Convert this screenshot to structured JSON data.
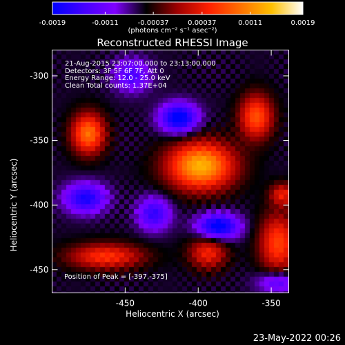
{
  "window": {
    "title": "Reconstructed RHESSI Image",
    "timestamp": "23-May-2022 00:26"
  },
  "colorbar": {
    "tick_labels": [
      "-0.0019",
      "-0.0011",
      "-0.00037",
      "0.00037",
      "0.0011",
      "0.0019"
    ],
    "units": "(photons cm⁻² s⁻¹ asec⁻²)",
    "range": [
      -0.0019,
      0.0019
    ],
    "colormap": [
      "#0000ff",
      "#4400ff",
      "#8000ff",
      "#000000",
      "#a00000",
      "#ff2000",
      "#ff7000",
      "#ffc000",
      "#ffffff"
    ]
  },
  "annotations": {
    "time_range": "21-Aug-2015 23:07:00.000 to 23:13:00.000",
    "detectors": "Detectors: 3F 5F 6F 7F, Att 0",
    "energy_range": "Energy Range: 12.0 - 25.0 keV",
    "algorithm": "Clean     Total counts: 1.37E+04",
    "peak": "Position of Peak = [-397,-375]"
  },
  "chart_data": {
    "type": "heatmap",
    "title": "Reconstructed RHESSI Image",
    "xlabel": "Heliocentric X (arcsec)",
    "ylabel": "Heliocentric Y (arcsec)",
    "xlim": [
      -500,
      -338
    ],
    "ylim": [
      -468,
      -280
    ],
    "x_ticks": [
      -450,
      -400,
      -350
    ],
    "y_ticks": [
      -300,
      -350,
      -400,
      -450
    ],
    "peak_position": [
      -397,
      -375
    ],
    "sources": [
      {
        "x": -398,
        "y": -370,
        "sx": 16,
        "sy": 13,
        "amp": 0.0019
      },
      {
        "x": -475,
        "y": -345,
        "sx": 8,
        "sy": 11,
        "amp": 0.0015
      },
      {
        "x": -360,
        "y": -332,
        "sx": 8,
        "sy": 12,
        "amp": 0.0013
      },
      {
        "x": -345,
        "y": -430,
        "sx": 9,
        "sy": 16,
        "amp": 0.0012
      },
      {
        "x": -463,
        "y": -440,
        "sx": 18,
        "sy": 7,
        "amp": 0.0011
      },
      {
        "x": -393,
        "y": -437,
        "sx": 9,
        "sy": 9,
        "amp": 0.001
      },
      {
        "x": -342,
        "y": -392,
        "sx": 6,
        "sy": 6,
        "amp": 0.0009
      },
      {
        "x": -413,
        "y": -333,
        "sx": 9,
        "sy": 8,
        "amp": -0.0015
      },
      {
        "x": -386,
        "y": -417,
        "sx": 10,
        "sy": 7,
        "amp": -0.0015
      },
      {
        "x": -477,
        "y": -395,
        "sx": 10,
        "sy": 8,
        "amp": -0.0012
      },
      {
        "x": -430,
        "y": -407,
        "sx": 8,
        "sy": 9,
        "amp": -0.001
      },
      {
        "x": -445,
        "y": -300,
        "sx": 9,
        "sy": 9,
        "amp": -0.0008
      },
      {
        "x": -345,
        "y": -460,
        "sx": 10,
        "sy": 6,
        "amp": -0.0008
      }
    ]
  }
}
